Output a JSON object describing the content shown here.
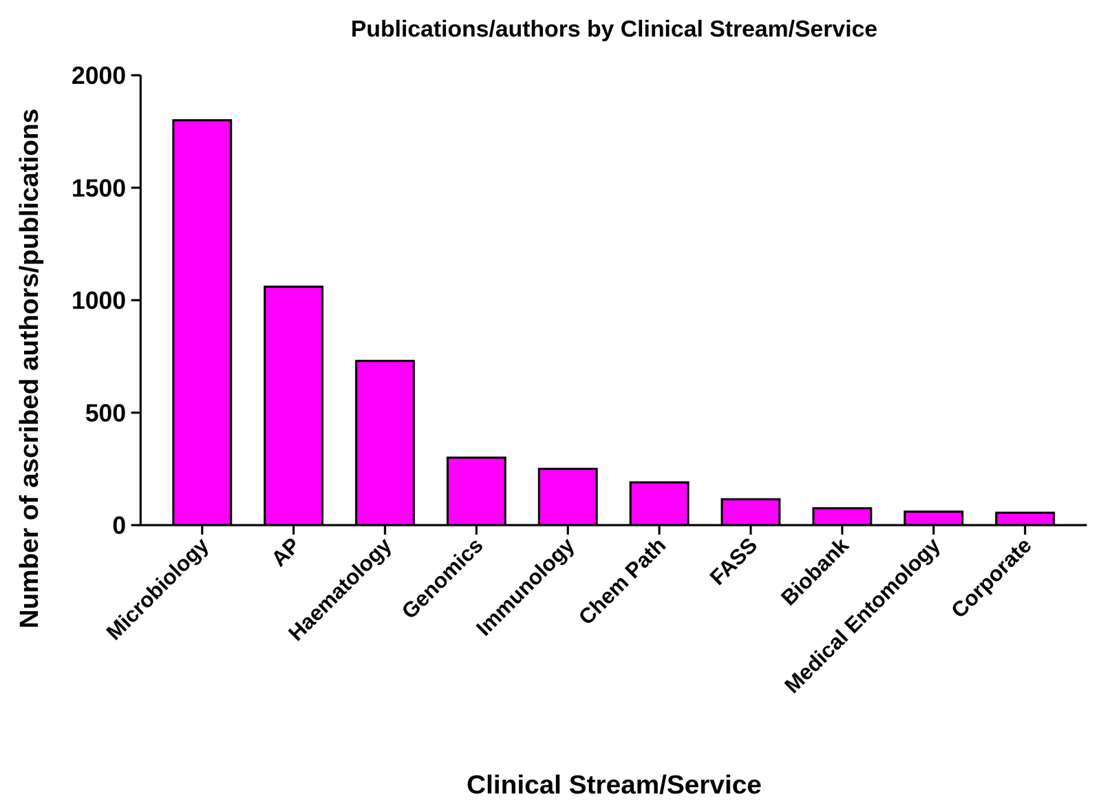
{
  "chart_data": {
    "type": "bar",
    "title": "Publications/authors by Clinical Stream/Service",
    "x_label": "Clinical Stream/Service",
    "y_label": "Number of ascribed authors/publications",
    "categories": [
      "Microbiology",
      "AP",
      "Haematology",
      "Genomics",
      "Immunology",
      "Chem Path",
      "FASS",
      "Biobank",
      "Medical Entomology",
      "Corporate"
    ],
    "values": [
      1800,
      1060,
      730,
      300,
      250,
      190,
      115,
      75,
      60,
      55
    ],
    "color": "#ff00ff",
    "ylim": [
      0,
      2000
    ],
    "yticks": [
      0,
      500,
      1000,
      1500,
      2000
    ],
    "grid": false
  }
}
